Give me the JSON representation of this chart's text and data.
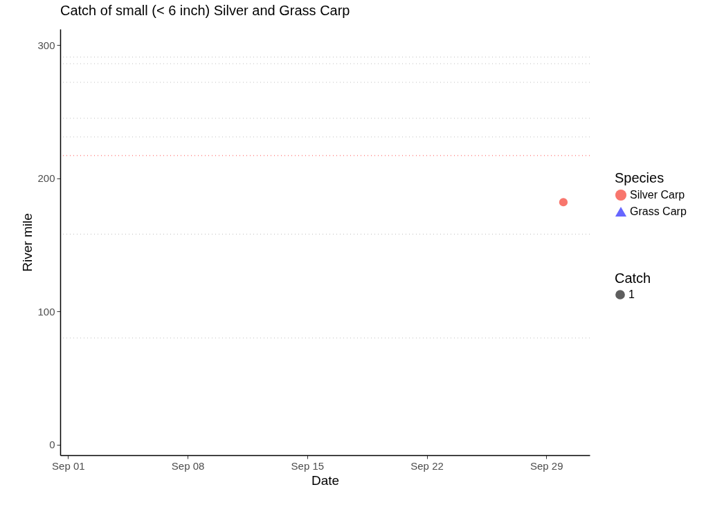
{
  "chart_data": {
    "type": "bubble",
    "title": "Catch of small (< 6 inch) Silver and Grass Carp",
    "xlabel": "Date",
    "ylabel": "River mile",
    "legend_title": "Species",
    "annotations": [
      "Catch"
    ],
    "series": [
      {
        "name": "Silver Carp",
        "color": "#f8766d",
        "marker": "circle",
        "x": [
          "--09-30"
        ],
        "values": [
          182
        ],
        "sizes": [
          1
        ]
      },
      {
        "name": "Grass Carp",
        "color": "#6666ff",
        "marker": "triangle"
      }
    ],
    "size_legend": [
      1
    ],
    "xlim": [
      "--08-31T13:00",
      "--10-01T13:00"
    ],
    "xticks": [
      {
        "value": "--09-01",
        "label": "Sep 01"
      },
      {
        "value": "--09-08",
        "label": "Sep 08"
      },
      {
        "value": "--09-15",
        "label": "Sep 15"
      },
      {
        "value": "--09-22",
        "label": "Sep 22"
      },
      {
        "value": "--09-29",
        "label": "Sep 29"
      }
    ],
    "ylim": [
      -8,
      312
    ],
    "yticks": [
      0,
      100,
      200,
      300
    ],
    "ref_lines": [
      {
        "axis": "y",
        "value": 291,
        "color": "#bebebe",
        "line_style": "dotted"
      },
      {
        "axis": "y",
        "value": 286,
        "color": "#bebebe",
        "line_style": "dotted"
      },
      {
        "axis": "y",
        "value": 272,
        "color": "#bebebe",
        "line_style": "dotted"
      },
      {
        "axis": "y",
        "value": 245,
        "color": "#bebebe",
        "line_style": "dotted"
      },
      {
        "axis": "y",
        "value": 231,
        "color": "#bebebe",
        "line_style": "dotted"
      },
      {
        "axis": "y",
        "value": 217,
        "color": "#ff4a4a",
        "line_style": "dotted"
      },
      {
        "axis": "y",
        "value": 158,
        "color": "#bebebe",
        "line_style": "dotted"
      },
      {
        "axis": "y",
        "value": 80,
        "color": "#bebebe",
        "line_style": "dotted"
      }
    ],
    "grid": false,
    "legend": "right"
  }
}
